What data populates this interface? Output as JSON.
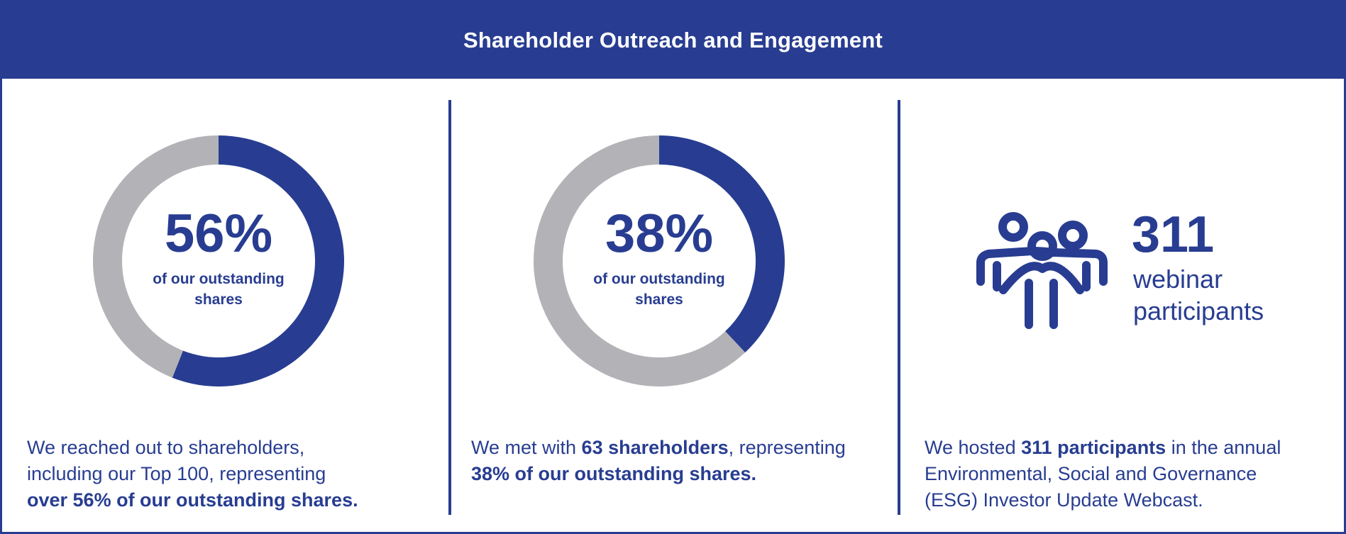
{
  "header": {
    "title": "Shareholder Outreach and Engagement"
  },
  "colors": {
    "brand": "#283d91",
    "ring_remainder": "#b3b3b7",
    "background": "#ffffff"
  },
  "chart_data": [
    {
      "type": "pie",
      "style": "donut",
      "value_label": "56%",
      "center_label": "of our outstanding shares",
      "slices": [
        {
          "label": "Reached",
          "value": 56,
          "color": "#283d91"
        },
        {
          "label": "Other",
          "value": 44,
          "color": "#b3b3b7"
        }
      ]
    },
    {
      "type": "pie",
      "style": "donut",
      "value_label": "38%",
      "center_label": "of our outstanding shares",
      "slices": [
        {
          "label": "Met",
          "value": 38,
          "color": "#283d91"
        },
        {
          "label": "Other",
          "value": 62,
          "color": "#b3b3b7"
        }
      ]
    }
  ],
  "panels": [
    {
      "desc": {
        "line1": "We reached out to shareholders,",
        "line2": "including our Top 100, representing",
        "bold3": "over 56% of our outstanding shares."
      }
    },
    {
      "desc": {
        "pre": "We met with ",
        "bold1": "63 shareholders",
        "mid": ", representing",
        "bold2": "38% of our outstanding shares."
      }
    },
    {
      "icon": "people-group-icon",
      "stat_number": "311",
      "stat_label_1": "webinar",
      "stat_label_2": "participants",
      "desc": {
        "pre": "We hosted ",
        "bold1": "311 participants",
        "post": " in the annual",
        "line2": "Environmental, Social and Governance",
        "line3": "(ESG) Investor Update Webcast."
      }
    }
  ]
}
